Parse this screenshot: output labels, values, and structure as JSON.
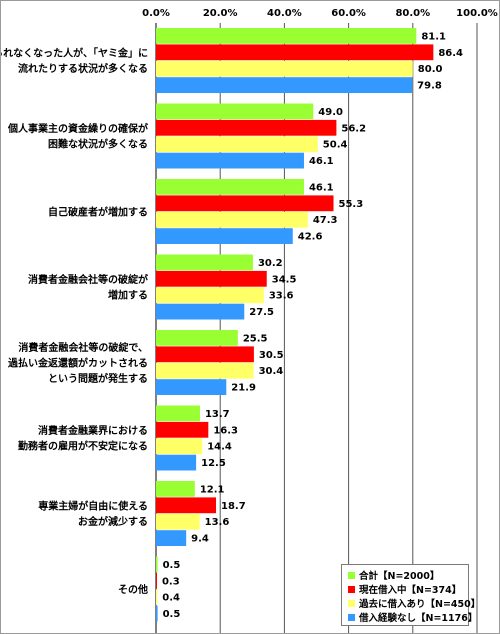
{
  "chart_data": {
    "type": "bar",
    "orientation": "horizontal",
    "xlim": [
      0,
      100
    ],
    "xticks": [
      "0.0%",
      "20.0%",
      "40.0%",
      "60.0%",
      "80.0%",
      "100.0%"
    ],
    "grid": "vertical",
    "legend_position": "bottom-right",
    "categories": [
      [
        "借りられなくなった人が、「ヤミ金」に",
        "流れたりする状況が多くなる"
      ],
      [
        "個人事業主の資金繰りの確保が",
        "困難な状況が多くなる"
      ],
      [
        "自己破産者が増加する"
      ],
      [
        "消費者金融会社等の破綻が",
        "増加する"
      ],
      [
        "消費者金融会社等の破綻で、",
        "過払い金返還額がカットされる",
        "という問題が発生する"
      ],
      [
        "消費者金融業界における",
        "勤務者の雇用が不安定になる"
      ],
      [
        "専業主婦が自由に使える",
        "お金が減少する"
      ],
      [
        "その他"
      ]
    ],
    "series": [
      {
        "name": "合計【N=2000】",
        "color": "#99ff33",
        "values": [
          81.1,
          49.0,
          46.1,
          30.2,
          25.5,
          13.7,
          12.1,
          0.5
        ],
        "labels": [
          "81.1",
          "49.0",
          "46.1",
          "30.2",
          "25.5",
          "13.7",
          "12.1",
          "0.5"
        ]
      },
      {
        "name": "現在借入中【N=374】",
        "color": "#ff0000",
        "values": [
          86.4,
          56.2,
          55.3,
          34.5,
          30.5,
          16.3,
          18.7,
          0.3
        ],
        "labels": [
          "86.4",
          "56.2",
          "55.3",
          "34.5",
          "30.5",
          "16.3",
          "18.7",
          "0.3"
        ]
      },
      {
        "name": "過去に借入あり【N=450】",
        "color": "#ffff66",
        "values": [
          80.0,
          50.4,
          47.3,
          33.6,
          30.4,
          14.4,
          13.6,
          0.4
        ],
        "labels": [
          "80.0",
          "50.4",
          "47.3",
          "33.6",
          "30.4",
          "14.4",
          "13.6",
          "0.4"
        ]
      },
      {
        "name": "借入経験なし【N=1176】",
        "color": "#3399ff",
        "values": [
          79.8,
          46.1,
          42.6,
          27.5,
          21.9,
          12.5,
          9.4,
          0.5
        ],
        "labels": [
          "79.8",
          "46.1",
          "42.6",
          "27.5",
          "21.9",
          "12.5",
          "9.4",
          "0.5"
        ]
      }
    ]
  }
}
